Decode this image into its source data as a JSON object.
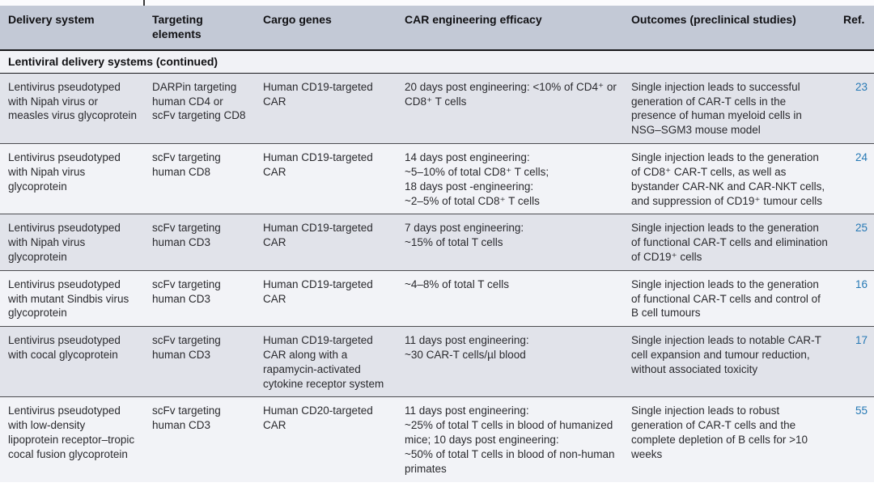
{
  "table": {
    "columns": [
      "Delivery system",
      "Targeting elements",
      "Cargo genes",
      "CAR engineering efficacy",
      "Outcomes (preclinical studies)",
      "Ref."
    ],
    "section_header": "Lentiviral delivery systems (continued)",
    "rows": [
      {
        "delivery_system": "Lentivirus pseudotyped with Nipah virus or measles virus glycoprotein",
        "targeting_elements": "DARPin targeting human CD4 or scFv targeting CD8",
        "cargo_genes": "Human CD19-targeted CAR",
        "efficacy": "20 days post engineering: <10% of CD4⁺ or CD8⁺ T cells",
        "outcomes": "Single injection leads to successful generation of CAR-T cells in the presence of human myeloid cells in NSG–SGM3 mouse model",
        "ref": "23"
      },
      {
        "delivery_system": "Lentivirus pseudotyped with Nipah virus glycoprotein",
        "targeting_elements": "scFv targeting human CD8",
        "cargo_genes": "Human CD19-targeted CAR",
        "efficacy": [
          "14 days post engineering:",
          "~5–10% of total CD8⁺ T cells;",
          "18 days post -engineering:",
          "~2–5% of total CD8⁺ T cells"
        ],
        "outcomes": "Single injection leads to the generation of CD8⁺ CAR-T cells, as well as bystander CAR-NK and CAR-NKT cells, and suppression of CD19⁺ tumour cells",
        "ref": "24"
      },
      {
        "delivery_system": "Lentivirus pseudotyped with Nipah virus glycoprotein",
        "targeting_elements": "scFv targeting human CD3",
        "cargo_genes": "Human CD19-targeted CAR",
        "efficacy": [
          "7 days post engineering:",
          "~15% of total T cells"
        ],
        "outcomes": "Single injection leads to the generation of functional CAR-T cells and elimination of CD19⁺ cells",
        "ref": "25"
      },
      {
        "delivery_system": "Lentivirus pseudotyped with mutant Sindbis virus glycoprotein",
        "targeting_elements": "scFv targeting human CD3",
        "cargo_genes": "Human CD19-targeted CAR",
        "efficacy": "~4–8% of total T cells",
        "outcomes": "Single injection leads to the generation of functional CAR-T cells and control of B cell tumours",
        "ref": "16"
      },
      {
        "delivery_system": "Lentivirus pseudotyped with cocal glycoprotein",
        "targeting_elements": "scFv targeting human CD3",
        "cargo_genes": "Human CD19-targeted CAR along with a rapamycin-activated cytokine receptor system",
        "efficacy": [
          "11 days post engineering:",
          "~30 CAR-T cells/µl blood"
        ],
        "outcomes": "Single injection leads to notable CAR-T cell expansion and tumour reduction, without associated toxicity",
        "ref": "17"
      },
      {
        "delivery_system": "Lentivirus pseudotyped with low-density lipoprotein receptor–tropic cocal fusion glycoprotein",
        "targeting_elements": "scFv targeting human CD3",
        "cargo_genes": "Human CD20-targeted CAR",
        "efficacy": [
          "11 days post engineering:",
          "~25% of total T cells in blood of humanized mice; 10 days post engineering:",
          "~50% of total T cells in blood of non-human primates"
        ],
        "outcomes": "Single injection leads to robust generation of CAR-T cells and the complete depletion of B cells for >10 weeks",
        "ref": "55"
      }
    ],
    "colors": {
      "header_bg": "#c3c9d6",
      "row_shade": "#e1e3ea",
      "row_light": "#f2f3f7",
      "section_bg": "#f1f2f6",
      "ref_link": "#2679b5",
      "rule": "#17171a"
    }
  }
}
